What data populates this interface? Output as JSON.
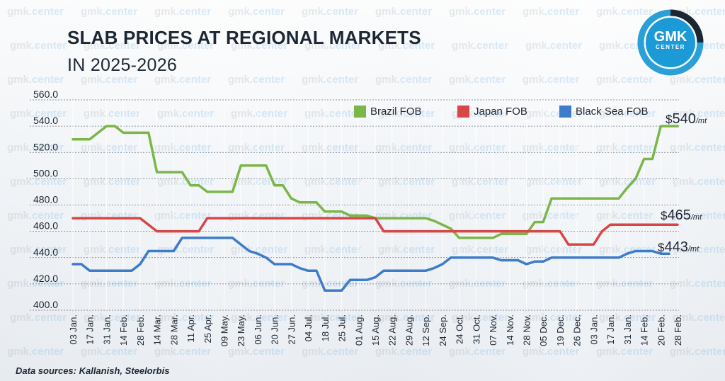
{
  "title_line1": "SLAB PRICES AT REGIONAL MARKETS",
  "title_line2": "IN 2025-2026",
  "logo": {
    "main": "GMK",
    "sub": "CENTER",
    "ring_color": "#2a9fd8"
  },
  "watermark": {
    "prefix": "gmk",
    "suffix": ".center"
  },
  "source": "Data sources: Kallanish, Steelorbis",
  "chart_data": {
    "type": "line",
    "title": "SLAB PRICES AT REGIONAL MARKETS IN 2025-2026",
    "x": [
      "03 Jan.",
      "17 Jan.",
      "31 Jan.",
      "14 Feb.",
      "28 Feb.",
      "14 Mar.",
      "28 Mar.",
      "11 Apr.",
      "25 Apr.",
      "09 May.",
      "23 May.",
      "06 Jun.",
      "20 Jun.",
      "27 Jun.",
      "04 Jul.",
      "18 Jul.",
      "25 Jul.",
      "01 Aug.",
      "15 Aug.",
      "22 Aug.",
      "29 Aug.",
      "12 Sep.",
      "24 Sep.",
      "24 Oct.",
      "31 Oct.",
      "07 Nov.",
      "14 Nov.",
      "28 Nov.",
      "05 Dec.",
      "19 Dec.",
      "26 Dec.",
      "03 Jan.",
      "17 Jan.",
      "31 Jan.",
      "14 Feb.",
      "20 Feb.",
      "28 Feb."
    ],
    "y_ticks": [
      "560.0",
      "540.0",
      "520.0",
      "500.0",
      "480.0",
      "460.0",
      "440.0",
      "420.0",
      "400.0"
    ],
    "ylim": [
      400,
      560
    ],
    "grid": true,
    "legend_position": "top-right",
    "series": [
      {
        "name": "Brazil FOB",
        "color": "#7ab648",
        "steps": [
          [
            0,
            530
          ],
          [
            1,
            530
          ],
          [
            1.5,
            535
          ],
          [
            2,
            540
          ],
          [
            2.5,
            540
          ],
          [
            3,
            535
          ],
          [
            4.5,
            535
          ],
          [
            5,
            505
          ],
          [
            6.5,
            505
          ],
          [
            7,
            495
          ],
          [
            7.5,
            495
          ],
          [
            8,
            490
          ],
          [
            9.5,
            490
          ],
          [
            10,
            510
          ],
          [
            11.5,
            510
          ],
          [
            12,
            495
          ],
          [
            12.5,
            495
          ],
          [
            13,
            485
          ],
          [
            13.5,
            482
          ],
          [
            14,
            482
          ],
          [
            14.5,
            482
          ],
          [
            15,
            475
          ],
          [
            16,
            475
          ],
          [
            16.5,
            472
          ],
          [
            17.5,
            472
          ],
          [
            18,
            470
          ],
          [
            21,
            470
          ],
          [
            21.5,
            468
          ],
          [
            22.5,
            462
          ],
          [
            23,
            455
          ],
          [
            25,
            455
          ],
          [
            25.5,
            458
          ],
          [
            27,
            458
          ],
          [
            27.5,
            467
          ],
          [
            28,
            467
          ],
          [
            28.5,
            485
          ],
          [
            32.5,
            485
          ],
          [
            33,
            493
          ],
          [
            33.5,
            500
          ],
          [
            34,
            515
          ],
          [
            34.5,
            515
          ],
          [
            35,
            540
          ],
          [
            36,
            540
          ]
        ],
        "end_value": "540",
        "end_unit": "/mt"
      },
      {
        "name": "Japan FOB",
        "color": "#d84646",
        "steps": [
          [
            0,
            470
          ],
          [
            4,
            470
          ],
          [
            5,
            460
          ],
          [
            7,
            460
          ],
          [
            7.5,
            460
          ],
          [
            8,
            470
          ],
          [
            18,
            470
          ],
          [
            18.5,
            460
          ],
          [
            29,
            460
          ],
          [
            29.5,
            450
          ],
          [
            30.5,
            450
          ],
          [
            31,
            450
          ],
          [
            31.5,
            460
          ],
          [
            32,
            465
          ],
          [
            36,
            465
          ]
        ],
        "end_value": "465",
        "end_unit": "/mt"
      },
      {
        "name": "Black Sea FOB",
        "color": "#3d7cc9",
        "steps": [
          [
            0,
            435
          ],
          [
            0.5,
            435
          ],
          [
            1,
            430
          ],
          [
            3.5,
            430
          ],
          [
            4,
            435
          ],
          [
            4.5,
            445
          ],
          [
            6,
            445
          ],
          [
            6.5,
            455
          ],
          [
            9.5,
            455
          ],
          [
            10,
            450
          ],
          [
            10.5,
            445
          ],
          [
            11,
            443
          ],
          [
            11.5,
            440
          ],
          [
            12,
            435
          ],
          [
            13,
            435
          ],
          [
            13.5,
            432
          ],
          [
            14,
            430
          ],
          [
            14.5,
            430
          ],
          [
            15,
            415
          ],
          [
            16,
            415
          ],
          [
            16.5,
            423
          ],
          [
            17.5,
            423
          ],
          [
            18,
            425
          ],
          [
            18.5,
            430
          ],
          [
            21,
            430
          ],
          [
            21.5,
            432
          ],
          [
            22,
            435
          ],
          [
            22.5,
            440
          ],
          [
            25,
            440
          ],
          [
            25.5,
            438
          ],
          [
            26.5,
            438
          ],
          [
            27,
            435
          ],
          [
            27.5,
            437
          ],
          [
            28,
            437
          ],
          [
            28.5,
            440
          ],
          [
            32,
            440
          ],
          [
            32.5,
            440
          ],
          [
            33,
            443
          ],
          [
            33.5,
            445
          ],
          [
            34,
            445
          ],
          [
            34.5,
            445
          ],
          [
            35,
            443
          ],
          [
            35.5,
            443
          ]
        ],
        "end_value": "443",
        "end_unit": "/mt"
      }
    ],
    "currency_symbol": "$"
  }
}
